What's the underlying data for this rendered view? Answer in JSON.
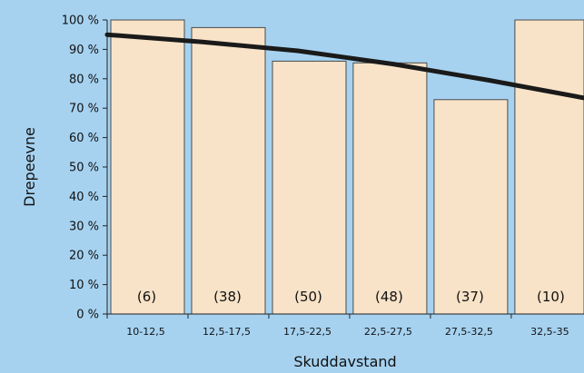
{
  "chart_data": {
    "type": "bar",
    "xlabel": "Skuddavstand",
    "ylabel": "Drepeevne",
    "ylim": [
      0,
      100
    ],
    "yticks": [
      0,
      10,
      20,
      30,
      40,
      50,
      60,
      70,
      80,
      90,
      100
    ],
    "ytick_suffix": " %",
    "categories": [
      "10-12,5",
      "12,5-17,5",
      "17,5-22,5",
      "22,5-27,5",
      "27,5-32,5",
      "32,5-35"
    ],
    "values": [
      100,
      97.4,
      86,
      85.4,
      72.9,
      100
    ],
    "count_labels": [
      "(6)",
      "(38)",
      "(50)",
      "(48)",
      "(37)",
      "(10)"
    ],
    "trend_line": {
      "x": [
        "10-12,5",
        "12,5-17,5",
        "17,5-22,5",
        "22,5-27,5",
        "27,5-32,5",
        "32,5-35"
      ],
      "values": [
        95,
        92.5,
        89.5,
        85,
        79.5,
        73.5
      ]
    },
    "grid": false,
    "legend": false,
    "colors": {
      "background": "#a6d2f0",
      "bar_fill": "#f8e3c8",
      "bar_stroke": "#4a4a4a",
      "trend_line": "#1a1a1a"
    }
  }
}
